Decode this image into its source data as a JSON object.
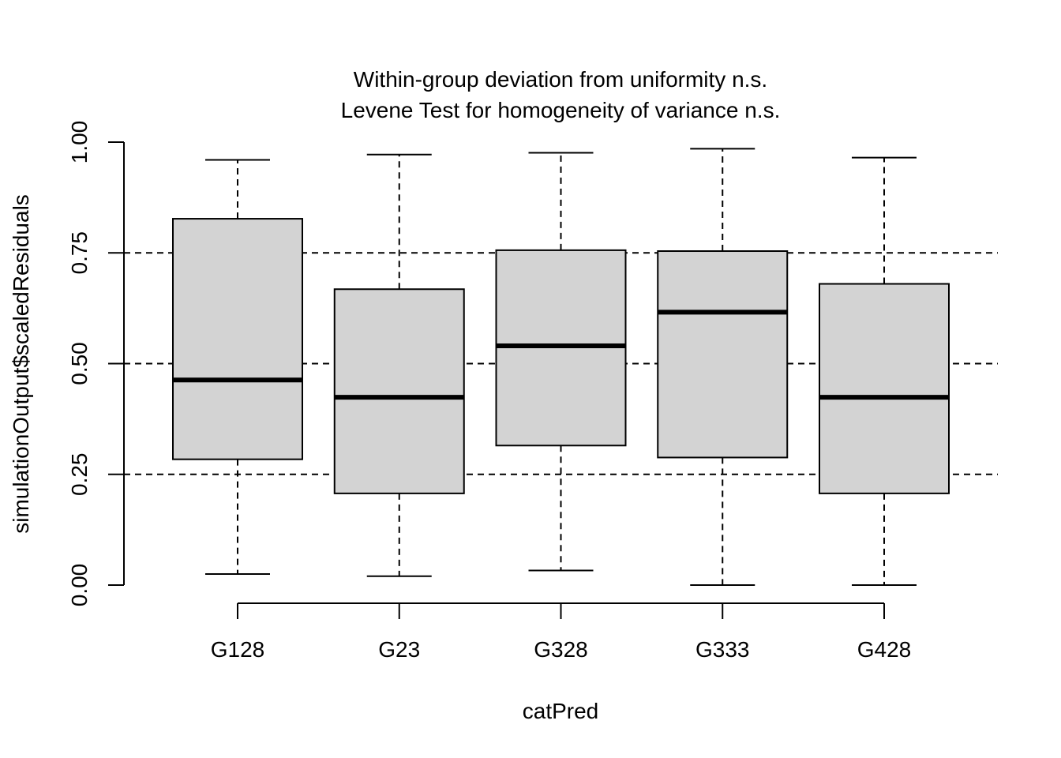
{
  "chart_data": {
    "type": "boxplot",
    "title_lines": [
      "Within-group deviation from uniformity n.s.",
      "Levene Test for homogeneity of variance n.s."
    ],
    "xlabel": "catPred",
    "ylabel": "simulationOutput$scaledResiduals",
    "ylim": [
      0,
      1
    ],
    "y_ticks": [
      0,
      0.25,
      0.5,
      0.75,
      1
    ],
    "y_tick_labels": [
      "0.00",
      "0.25",
      "0.50",
      "0.75",
      "1.00"
    ],
    "reference_lines": [
      0.25,
      0.5,
      0.75
    ],
    "box_fill": "#d3d3d3",
    "categories": [
      "G128",
      "G23",
      "G328",
      "G333",
      "G428"
    ],
    "boxes": [
      {
        "min": 0.025,
        "q1": 0.284,
        "median": 0.463,
        "q3": 0.827,
        "max": 0.96
      },
      {
        "min": 0.02,
        "q1": 0.207,
        "median": 0.424,
        "q3": 0.668,
        "max": 0.972
      },
      {
        "min": 0.033,
        "q1": 0.315,
        "median": 0.54,
        "q3": 0.756,
        "max": 0.976
      },
      {
        "min": 0.0,
        "q1": 0.288,
        "median": 0.616,
        "q3": 0.754,
        "max": 0.985
      },
      {
        "min": 0.0,
        "q1": 0.207,
        "median": 0.424,
        "q3": 0.68,
        "max": 0.965
      }
    ]
  }
}
